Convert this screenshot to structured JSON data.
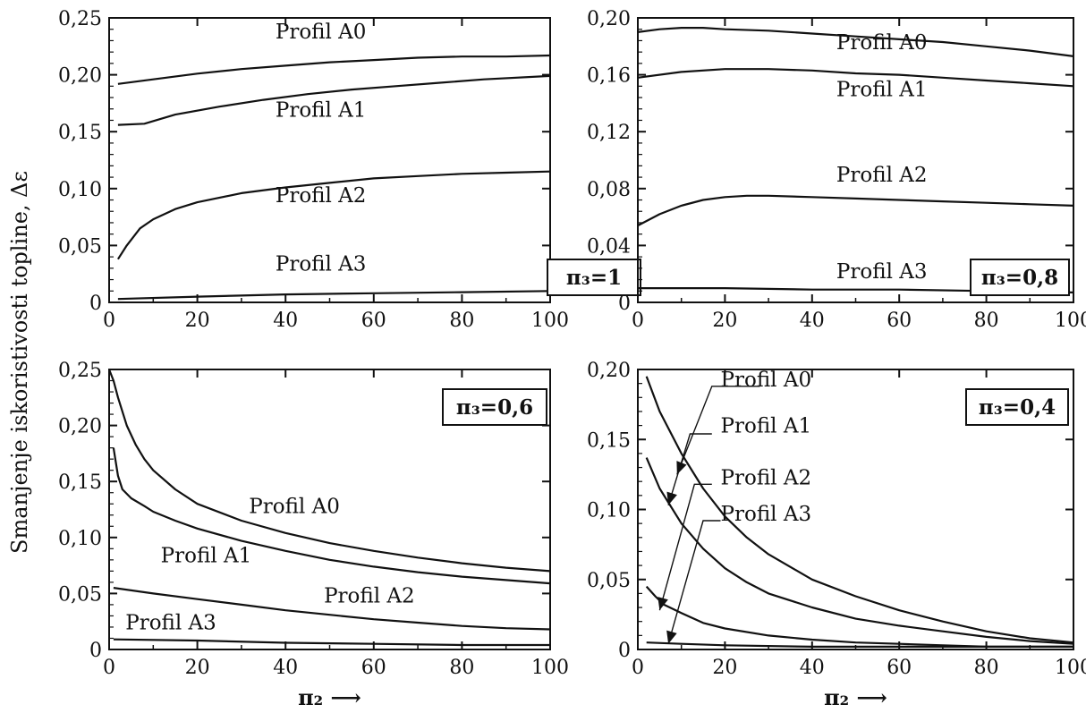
{
  "ylabel": "Smanjenje iskoristivosti topline, Δε",
  "chart_data": [
    {
      "type": "line",
      "panel": "top-left",
      "param_label": "π₃=1",
      "x_ticks": [
        "0",
        "20",
        "40",
        "60",
        "80",
        "100"
      ],
      "y_ticks": [
        "0",
        "0,05",
        "0,10",
        "0,15",
        "0,20",
        "0,25"
      ],
      "xlim": [
        0,
        100
      ],
      "ylim": [
        0,
        0.25
      ],
      "xlabel": "",
      "series": [
        {
          "name": "Profil A0",
          "x": [
            2,
            10,
            20,
            30,
            40,
            50,
            60,
            70,
            80,
            90,
            100
          ],
          "y": [
            0.192,
            0.196,
            0.201,
            0.205,
            0.208,
            0.211,
            0.213,
            0.215,
            0.216,
            0.216,
            0.217
          ]
        },
        {
          "name": "Profil A1",
          "x": [
            2,
            8,
            15,
            25,
            35,
            45,
            55,
            65,
            75,
            85,
            100
          ],
          "y": [
            0.156,
            0.157,
            0.165,
            0.172,
            0.178,
            0.183,
            0.187,
            0.19,
            0.193,
            0.196,
            0.199
          ]
        },
        {
          "name": "Profil A2",
          "x": [
            2,
            4,
            7,
            10,
            15,
            20,
            30,
            40,
            50,
            60,
            70,
            80,
            90,
            100
          ],
          "y": [
            0.038,
            0.05,
            0.065,
            0.073,
            0.082,
            0.088,
            0.096,
            0.101,
            0.105,
            0.109,
            0.111,
            0.113,
            0.114,
            0.115
          ]
        },
        {
          "name": "Profil A3",
          "x": [
            2,
            20,
            40,
            60,
            80,
            100
          ],
          "y": [
            0.003,
            0.005,
            0.007,
            0.008,
            0.009,
            0.01
          ]
        }
      ]
    },
    {
      "type": "line",
      "panel": "top-right",
      "param_label": "π₃=0,8",
      "x_ticks": [
        "0",
        "20",
        "40",
        "60",
        "80",
        "100"
      ],
      "y_ticks": [
        "0",
        "0,04",
        "0,08",
        "0,12",
        "0,16",
        "0,20"
      ],
      "xlim": [
        0,
        100
      ],
      "ylim": [
        0,
        0.2
      ],
      "xlabel": "",
      "series": [
        {
          "name": "Profil A0",
          "x": [
            0,
            5,
            10,
            15,
            20,
            30,
            40,
            50,
            60,
            70,
            80,
            90,
            100
          ],
          "y": [
            0.19,
            0.192,
            0.193,
            0.193,
            0.192,
            0.191,
            0.189,
            0.187,
            0.185,
            0.183,
            0.18,
            0.177,
            0.173
          ]
        },
        {
          "name": "Profil A1",
          "x": [
            0,
            10,
            20,
            30,
            40,
            50,
            60,
            70,
            80,
            90,
            100
          ],
          "y": [
            0.158,
            0.162,
            0.164,
            0.164,
            0.163,
            0.161,
            0.16,
            0.158,
            0.156,
            0.154,
            0.152
          ]
        },
        {
          "name": "Profil A2",
          "x": [
            0,
            5,
            10,
            15,
            20,
            25,
            30,
            40,
            50,
            60,
            70,
            80,
            90,
            100
          ],
          "y": [
            0.054,
            0.062,
            0.068,
            0.072,
            0.074,
            0.075,
            0.075,
            0.074,
            0.073,
            0.072,
            0.071,
            0.07,
            0.069,
            0.068
          ]
        },
        {
          "name": "Profil A3",
          "x": [
            0,
            20,
            40,
            60,
            80,
            100
          ],
          "y": [
            0.01,
            0.01,
            0.009,
            0.009,
            0.008,
            0.007
          ]
        }
      ]
    },
    {
      "type": "line",
      "panel": "bottom-left",
      "param_label": "π₃=0,6",
      "x_ticks": [
        "0",
        "20",
        "40",
        "60",
        "80",
        "100"
      ],
      "y_ticks": [
        "0",
        "0,05",
        "0,10",
        "0,15",
        "0,20",
        "0,25"
      ],
      "xlim": [
        0,
        100
      ],
      "ylim": [
        0,
        0.25
      ],
      "xlabel": "π₂ ⟶",
      "series": [
        {
          "name": "Profil A0",
          "x": [
            0,
            1,
            2,
            4,
            6,
            8,
            10,
            15,
            20,
            30,
            40,
            50,
            60,
            70,
            80,
            90,
            100
          ],
          "y": [
            0.25,
            0.24,
            0.225,
            0.2,
            0.183,
            0.17,
            0.16,
            0.143,
            0.13,
            0.115,
            0.104,
            0.095,
            0.088,
            0.082,
            0.077,
            0.073,
            0.07
          ]
        },
        {
          "name": "Profil A1",
          "x": [
            1,
            2,
            3,
            5,
            8,
            10,
            15,
            20,
            30,
            40,
            50,
            60,
            70,
            80,
            90,
            100
          ],
          "y": [
            0.18,
            0.155,
            0.143,
            0.135,
            0.128,
            0.123,
            0.115,
            0.108,
            0.097,
            0.088,
            0.08,
            0.074,
            0.069,
            0.065,
            0.062,
            0.059
          ]
        },
        {
          "name": "Profil A2",
          "x": [
            1,
            10,
            20,
            30,
            40,
            50,
            60,
            70,
            80,
            90,
            100
          ],
          "y": [
            0.055,
            0.05,
            0.045,
            0.04,
            0.035,
            0.031,
            0.027,
            0.024,
            0.021,
            0.019,
            0.018
          ]
        },
        {
          "name": "Profil A3",
          "x": [
            1,
            20,
            40,
            60,
            80,
            100
          ],
          "y": [
            0.009,
            0.008,
            0.006,
            0.005,
            0.004,
            0.004
          ]
        }
      ]
    },
    {
      "type": "line",
      "panel": "bottom-right",
      "param_label": "π₃=0,4",
      "x_ticks": [
        "0",
        "20",
        "40",
        "60",
        "80",
        "100"
      ],
      "y_ticks": [
        "0",
        "0,05",
        "0,10",
        "0,15",
        "0,20"
      ],
      "xlim": [
        0,
        100
      ],
      "ylim": [
        0,
        0.2
      ],
      "xlabel": "π₂ ⟶",
      "series": [
        {
          "name": "Profil A0",
          "x": [
            2,
            5,
            10,
            15,
            20,
            25,
            30,
            40,
            50,
            60,
            70,
            80,
            90,
            100
          ],
          "y": [
            0.195,
            0.17,
            0.14,
            0.115,
            0.095,
            0.08,
            0.068,
            0.05,
            0.038,
            0.028,
            0.02,
            0.013,
            0.008,
            0.005
          ]
        },
        {
          "name": "Profil A1",
          "x": [
            2,
            5,
            10,
            15,
            20,
            25,
            30,
            40,
            50,
            60,
            70,
            80,
            90,
            100
          ],
          "y": [
            0.137,
            0.115,
            0.09,
            0.072,
            0.058,
            0.048,
            0.04,
            0.03,
            0.022,
            0.017,
            0.013,
            0.009,
            0.006,
            0.004
          ]
        },
        {
          "name": "Profil A2",
          "x": [
            2,
            4,
            6,
            10,
            15,
            20,
            30,
            40,
            50,
            60,
            70,
            80,
            90,
            100
          ],
          "y": [
            0.045,
            0.038,
            0.032,
            0.026,
            0.019,
            0.015,
            0.01,
            0.007,
            0.005,
            0.004,
            0.003,
            0.002,
            0.002,
            0.002
          ]
        },
        {
          "name": "Profil A3",
          "x": [
            2,
            10,
            20,
            40,
            60,
            80,
            100
          ],
          "y": [
            0.005,
            0.004,
            0.003,
            0.002,
            0.002,
            0.002,
            0.002
          ]
        }
      ]
    }
  ]
}
